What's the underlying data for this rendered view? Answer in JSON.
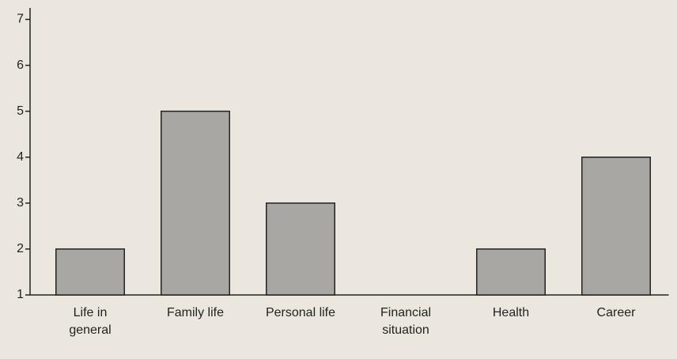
{
  "chart_data": {
    "type": "bar",
    "categories": [
      "Life in general",
      "Family life",
      "Personal life",
      "Financial situation",
      "Health",
      "Career"
    ],
    "values": [
      2,
      5,
      3,
      1,
      2,
      4
    ],
    "color": "#a9a7a3",
    "ylim": [
      1,
      7.25
    ],
    "yticks": [
      1,
      2,
      3,
      4,
      5,
      6,
      7
    ]
  }
}
